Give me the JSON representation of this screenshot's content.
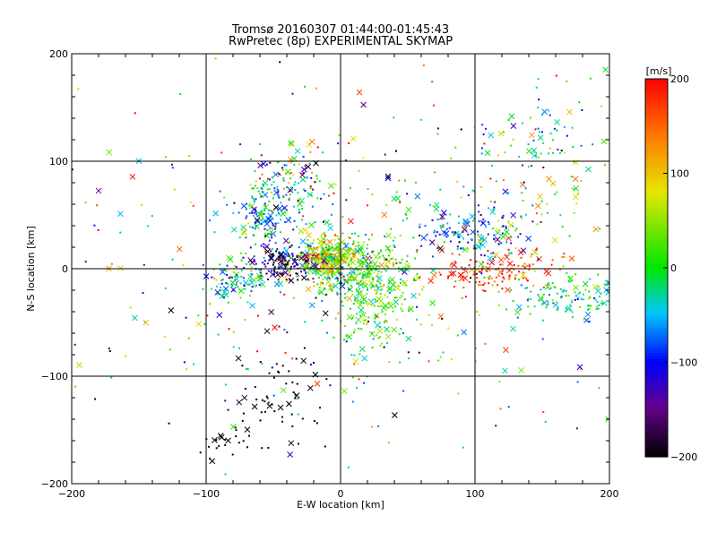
{
  "chart_data": {
    "type": "scatter",
    "title": "Tromsø 20160307 01:44:00-01:45:43",
    "subtitle": "RwPretec (8p) EXPERIMENTAL SKYMAP",
    "xlabel": "E-W location [km]",
    "ylabel": "N-S location [km]",
    "xlim": [
      -200,
      200
    ],
    "ylim": [
      -200,
      200
    ],
    "xticks": [
      -200,
      -100,
      0,
      100,
      200
    ],
    "yticks": [
      -200,
      -100,
      0,
      100,
      200
    ],
    "grid": true,
    "colorbar": {
      "label": "[m/s]",
      "range": [
        -200,
        200
      ],
      "ticks": [
        200,
        100,
        0,
        -100,
        -200
      ],
      "colormap": "rainbow",
      "placement": "right"
    },
    "clusters": [
      {
        "x": -10,
        "y": 10,
        "sx": 12,
        "sy": 10,
        "n": 320,
        "v": 60,
        "vs": 70
      },
      {
        "x": 10,
        "y": 0,
        "sx": 20,
        "sy": 14,
        "n": 260,
        "v": 20,
        "vs": 60
      },
      {
        "x": 25,
        "y": -30,
        "sx": 18,
        "sy": 22,
        "n": 200,
        "v": 10,
        "vs": 40
      },
      {
        "x": -45,
        "y": 5,
        "sx": 12,
        "sy": 8,
        "n": 130,
        "v": -150,
        "vs": 50
      },
      {
        "x": -80,
        "y": -10,
        "sx": 10,
        "sy": 10,
        "n": 90,
        "v": -20,
        "vs": 60
      },
      {
        "x": -55,
        "y": 50,
        "sx": 10,
        "sy": 15,
        "n": 130,
        "v": -60,
        "vs": 40
      },
      {
        "x": -35,
        "y": 80,
        "sx": 15,
        "sy": 20,
        "n": 100,
        "v": -20,
        "vs": 90
      },
      {
        "x": 120,
        "y": 0,
        "sx": 25,
        "sy": 10,
        "n": 130,
        "v": 170,
        "vs": 40
      },
      {
        "x": 95,
        "y": 35,
        "sx": 25,
        "sy": 15,
        "n": 150,
        "v": -70,
        "vs": 50
      },
      {
        "x": 170,
        "y": -25,
        "sx": 20,
        "sy": 10,
        "n": 120,
        "v": -10,
        "vs": 40
      },
      {
        "x": 150,
        "y": 90,
        "sx": 30,
        "sy": 40,
        "n": 110,
        "v": -10,
        "vs": 80
      },
      {
        "x": -45,
        "y": -120,
        "sx": 20,
        "sy": 25,
        "n": 60,
        "v": -195,
        "vs": 10
      },
      {
        "x": -85,
        "y": -165,
        "sx": 10,
        "sy": 10,
        "n": 22,
        "v": -200,
        "vs": 5
      },
      {
        "x": 0,
        "y": 0,
        "sx": 110,
        "sy": 90,
        "n": 420,
        "v": 0,
        "vs": 140
      }
    ],
    "seed": 20160307
  }
}
